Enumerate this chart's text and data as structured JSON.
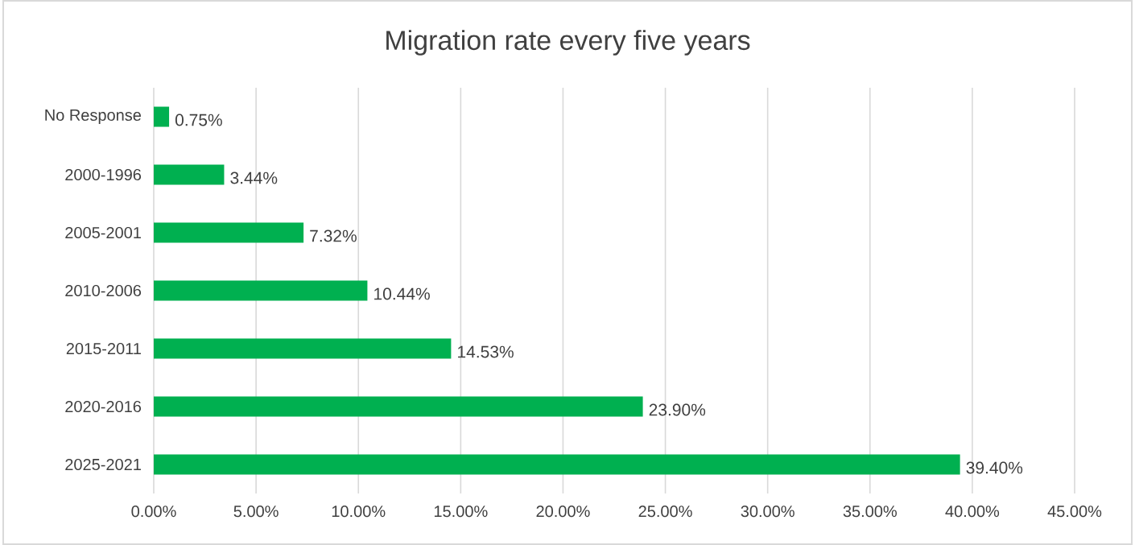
{
  "chart_data": {
    "type": "bar",
    "orientation": "horizontal",
    "title": "Migration rate every five years",
    "categories": [
      "No Response",
      "2000-1996",
      "2005-2001",
      "2010-2006",
      "2015-2011",
      "2020-2016",
      "2025-2021"
    ],
    "values": [
      0.75,
      3.44,
      7.32,
      10.44,
      14.53,
      23.9,
      39.4
    ],
    "value_labels": [
      "0.75%",
      "3.44%",
      "7.32%",
      "10.44%",
      "14.53%",
      "23.90%",
      "39.40%"
    ],
    "color": "#00b050",
    "xlim": [
      0,
      45
    ],
    "xticks": [
      {
        "value": 0,
        "label": "0.00%"
      },
      {
        "value": 5,
        "label": "5.00%"
      },
      {
        "value": 10,
        "label": "10.00%"
      },
      {
        "value": 15,
        "label": "15.00%"
      },
      {
        "value": 20,
        "label": "20.00%"
      },
      {
        "value": 25,
        "label": "25.00%"
      },
      {
        "value": 30,
        "label": "30.00%"
      },
      {
        "value": 35,
        "label": "35.00%"
      },
      {
        "value": 40,
        "label": "40.00%"
      },
      {
        "value": 45,
        "label": "45.00%"
      }
    ],
    "grid": "x"
  }
}
